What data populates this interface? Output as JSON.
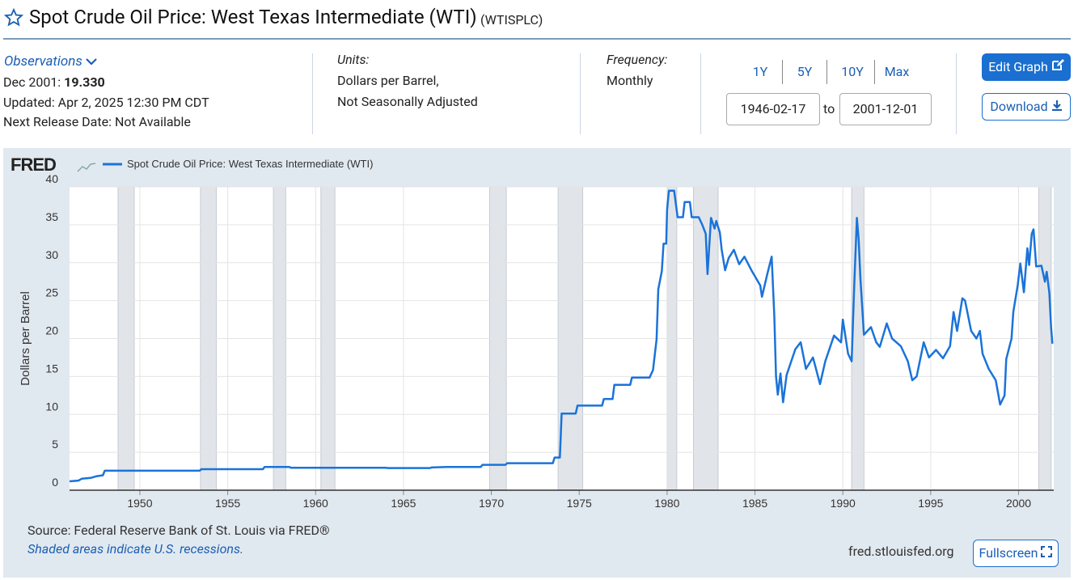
{
  "header": {
    "title": "Spot Crude Oil Price: West Texas Intermediate (WTI)",
    "series_id": "(WTISPLC)"
  },
  "observations": {
    "label": "Observations",
    "date": "Dec 2001:",
    "value": "19.330",
    "updated": "Updated: Apr 2, 2025 12:30 PM CDT",
    "next_release": "Next Release Date: Not Available"
  },
  "units": {
    "label": "Units:",
    "lines": [
      "Dollars per Barrel,",
      "Not Seasonally Adjusted"
    ]
  },
  "frequency": {
    "label": "Frequency:",
    "value": "Monthly"
  },
  "range_buttons": [
    "1Y",
    "5Y",
    "10Y",
    "Max"
  ],
  "date_range": {
    "start": "1946-02-17",
    "separator": "to",
    "end": "2001-12-01"
  },
  "actions": {
    "edit": "Edit Graph",
    "download": "Download",
    "fullscreen": "Fullscreen"
  },
  "chart_data": {
    "type": "line",
    "logo": "FRED",
    "ylabel": "Dollars per Barrel",
    "xlim": [
      1946,
      2002
    ],
    "ylim": [
      0,
      40
    ],
    "xticks": [
      1950,
      1955,
      1960,
      1965,
      1970,
      1975,
      1980,
      1985,
      1990,
      1995,
      2000
    ],
    "yticks": [
      0,
      5,
      10,
      15,
      20,
      25,
      30,
      35,
      40
    ],
    "grid": true,
    "recessions": [
      [
        1948.76,
        1949.68
      ],
      [
        1953.45,
        1954.35
      ],
      [
        1957.6,
        1958.3
      ],
      [
        1960.3,
        1961.1
      ],
      [
        1969.9,
        1970.85
      ],
      [
        1973.8,
        1975.2
      ],
      [
        1980.0,
        1980.55
      ],
      [
        1981.5,
        1982.9
      ],
      [
        1990.5,
        1991.2
      ],
      [
        2001.15,
        2001.85
      ]
    ],
    "recession_color": "#e1e5ea",
    "x": [
      1946.0,
      1946.5,
      1946.7,
      1947.2,
      1947.5,
      1947.9,
      1948.0,
      1953.4,
      1953.5,
      1957.0,
      1957.1,
      1958.5,
      1958.6,
      1964.0,
      1964.1,
      1966.5,
      1966.6,
      1967.5,
      1969.4,
      1969.5,
      1970.8,
      1970.9,
      1973.5,
      1973.6,
      1973.9,
      1974.0,
      1974.8,
      1974.9,
      1976.3,
      1976.4,
      1976.9,
      1977.0,
      1977.9,
      1978.0,
      1978.9,
      1979.0,
      1979.2,
      1979.4,
      1979.5,
      1979.7,
      1979.8,
      1979.95,
      1980.0,
      1980.1,
      1980.4,
      1980.6,
      1980.9,
      1981.0,
      1981.3,
      1981.4,
      1981.8,
      1982.0,
      1982.2,
      1982.3,
      1982.5,
      1982.7,
      1982.8,
      1983.0,
      1983.1,
      1983.3,
      1983.5,
      1983.8,
      1984.1,
      1984.4,
      1984.8,
      1985.3,
      1985.4,
      1985.7,
      1985.95,
      1986.1,
      1986.2,
      1986.3,
      1986.45,
      1986.6,
      1986.8,
      1987.3,
      1987.6,
      1987.9,
      1988.3,
      1988.7,
      1989.0,
      1989.5,
      1989.9,
      1990.0,
      1990.3,
      1990.5,
      1990.65,
      1990.8,
      1990.9,
      1991.0,
      1991.2,
      1991.6,
      1991.9,
      1992.1,
      1992.5,
      1992.8,
      1993.3,
      1993.7,
      1993.95,
      1994.2,
      1994.6,
      1994.9,
      1995.3,
      1995.7,
      1996.1,
      1996.3,
      1996.5,
      1996.8,
      1996.95,
      1997.3,
      1997.6,
      1997.8,
      1997.95,
      1998.3,
      1998.7,
      1998.95,
      1999.2,
      1999.3,
      1999.6,
      1999.7,
      1999.95,
      2000.1,
      2000.3,
      2000.5,
      2000.6,
      2000.75,
      2000.85,
      2001.0,
      2001.3,
      2001.5,
      2001.6,
      2001.75,
      2001.85,
      2001.92
    ],
    "series": [
      {
        "name": "Spot Crude Oil Price: West Texas Intermediate (WTI)",
        "color": "#1a73d9",
        "values": [
          1.17,
          1.27,
          1.52,
          1.62,
          1.82,
          1.97,
          2.57,
          2.57,
          2.77,
          2.77,
          3.07,
          3.07,
          2.97,
          2.97,
          2.92,
          2.92,
          3.0,
          3.07,
          3.07,
          3.35,
          3.35,
          3.56,
          3.56,
          4.31,
          4.31,
          10.11,
          10.11,
          11.16,
          11.16,
          12.03,
          12.03,
          13.9,
          13.9,
          14.85,
          14.85,
          14.85,
          15.85,
          19.9,
          26.5,
          28.9,
          32.5,
          32.5,
          37,
          39.5,
          39.5,
          36,
          36,
          38,
          38,
          36,
          36,
          35,
          33.8,
          28.5,
          35.9,
          34.5,
          35.5,
          34,
          31.8,
          29,
          30.6,
          31.7,
          29.8,
          30.8,
          29,
          27,
          25.5,
          28.5,
          30.8,
          22.9,
          15,
          12.6,
          15.4,
          11.6,
          15.2,
          18.6,
          19.5,
          16,
          17.5,
          14,
          17,
          20.4,
          19.5,
          22.5,
          18,
          17,
          27,
          35.9,
          33,
          28,
          20.5,
          21.5,
          19.5,
          18.9,
          22,
          20,
          19,
          17,
          14.5,
          15,
          19.5,
          17.5,
          18.5,
          17.4,
          19,
          23.5,
          21,
          25.3,
          25,
          21,
          20,
          21,
          18,
          16,
          14.5,
          11.3,
          12.5,
          17.3,
          20,
          23.5,
          27,
          29.9,
          26.1,
          31.9,
          29.7,
          33.8,
          34.4,
          29.5,
          29.6,
          27.5,
          28.8,
          26,
          21.5,
          19.33
        ]
      }
    ]
  },
  "footer": {
    "source": "Source: Federal Reserve Bank of St. Louis via FRED®",
    "note": "Shaded areas indicate U.S. recessions.",
    "url": "fred.stlouisfed.org"
  }
}
